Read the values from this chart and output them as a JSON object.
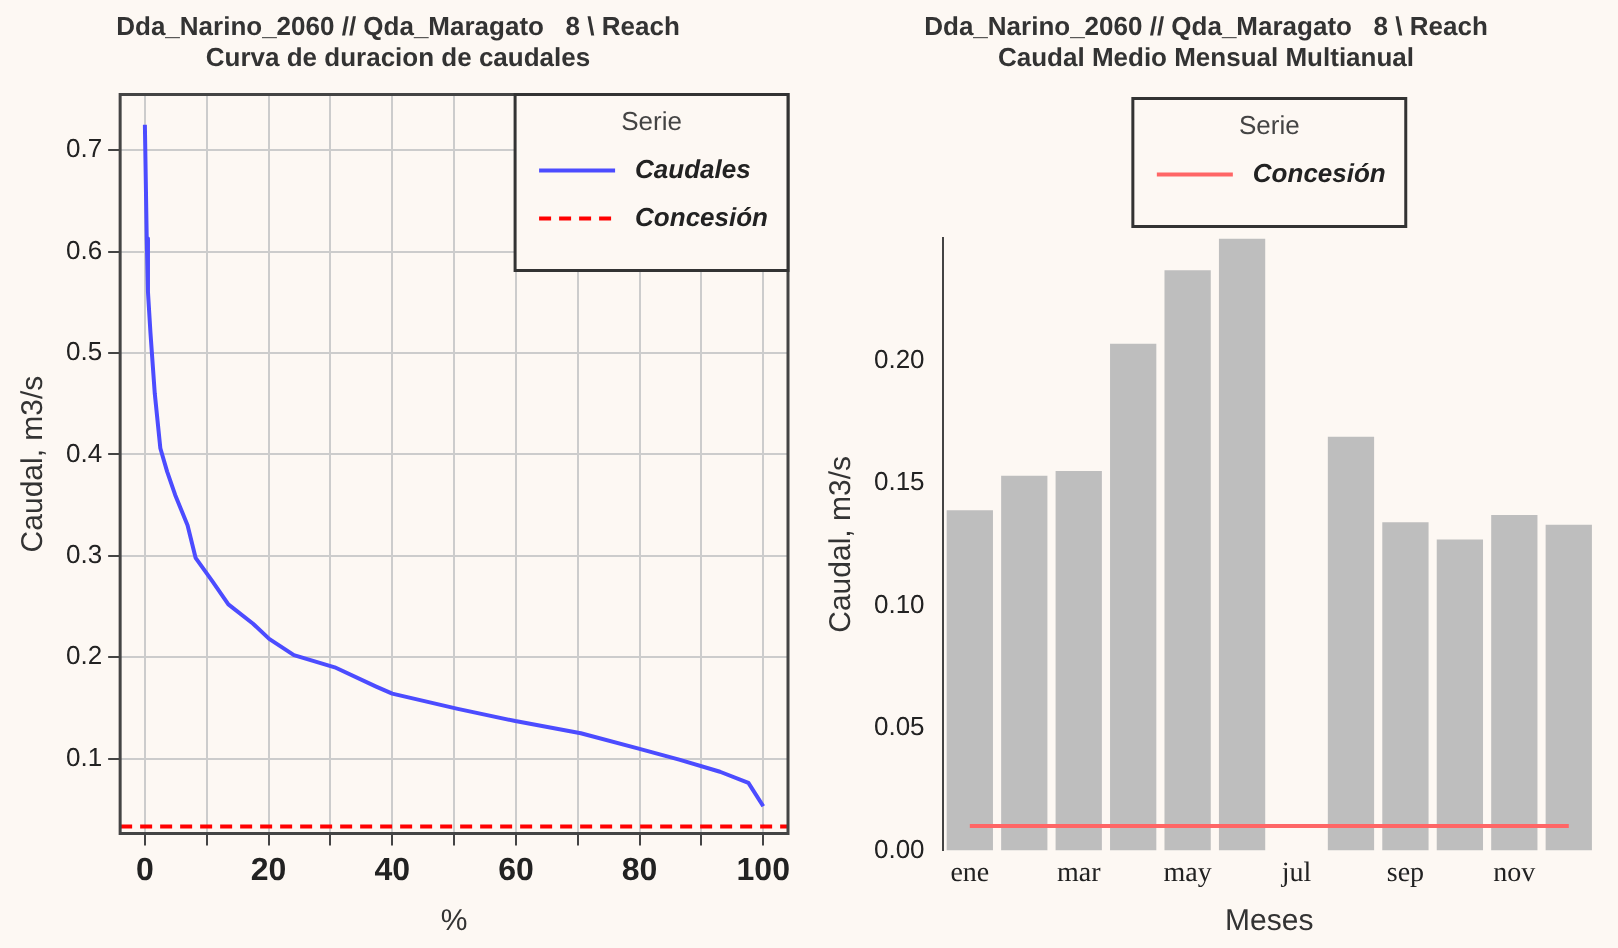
{
  "chart_data": [
    {
      "type": "line",
      "title": "Dda_Narino_2060 // Qda_Maragato   8 \\ Reach",
      "subtitle": "Curva de duracion de caudales",
      "xlabel": "%",
      "ylabel": "Caudal, m3/s",
      "legend_title": "Serie",
      "legend": "top right",
      "grid": true,
      "marker": "none",
      "xlim": [
        -4,
        104
      ],
      "xticks": [
        0,
        {
          "value": 10,
          "label": null
        },
        20,
        {
          "value": 30,
          "label": null
        },
        40,
        {
          "value": 50,
          "label": null
        },
        60,
        {
          "value": 70,
          "label": null
        },
        80,
        {
          "value": 90,
          "label": null
        },
        100
      ],
      "ylim": [
        0.026,
        0.755
      ],
      "yticks": [
        0.1,
        0.2,
        0.3,
        0.4,
        0.5,
        0.6,
        0.7
      ],
      "series": [
        {
          "name": "Caudales",
          "color": "#4c4cff",
          "line_style": "solid",
          "x": [
            0,
            0.3,
            0.5,
            0.9,
            1.6,
            2.5,
            3.6,
            4.9,
            6.9,
            8.2,
            10.9,
            13.5,
            17.5,
            20.1,
            24.1,
            30.7,
            37.4,
            40,
            50.6,
            59.9,
            70.5,
            79.7,
            86.4,
            93,
            97.6,
            100
          ],
          "values": [
            0.725,
            0.613,
            0.56,
            0.52,
            0.46,
            0.406,
            0.383,
            0.36,
            0.33,
            0.298,
            0.275,
            0.252,
            0.233,
            0.218,
            0.202,
            0.19,
            0.171,
            0.164,
            0.149,
            0.137,
            0.125,
            0.11,
            0.099,
            0.087,
            0.076,
            0.053
          ]
        },
        {
          "name": "Concesión",
          "color": "#ff0000",
          "line_style": "dashed",
          "x": [
            -4,
            104
          ],
          "values": [
            0.033,
            0.033
          ]
        }
      ]
    },
    {
      "type": "bar",
      "title": "Dda_Narino_2060 // Qda_Maragato   8 \\ Reach",
      "subtitle": "Caudal Medio Mensual Multianual",
      "xlabel": "Meses",
      "ylabel": "Caudal, m3/s",
      "legend_title": "Serie",
      "legend": "top",
      "grid": false,
      "categories": [
        "ene",
        null,
        "mar",
        null,
        "may",
        null,
        "jul",
        null,
        "sep",
        null,
        "nov",
        null
      ],
      "ylim": [
        0,
        0.25
      ],
      "yticks": [
        {
          "value": 0,
          "label": "0.00"
        },
        0.05,
        {
          "value": 0.1,
          "label": "0.10"
        },
        0.15,
        {
          "value": 0.2,
          "label": "0.20"
        }
      ],
      "series": [
        {
          "color": "#bebebe",
          "values": [
            0.139,
            0.153,
            0.155,
            0.207,
            0.237,
            0.25,
            null,
            0.169,
            0.134,
            0.127,
            0.137,
            0.133
          ]
        },
        {
          "type": "line",
          "name": "Concesión",
          "color": "#ff6666",
          "line_style": "solid",
          "values": [
            0.01,
            0.01,
            0.01,
            0.01,
            0.01,
            0.01,
            0.01,
            0.01,
            0.01,
            0.01,
            0.01,
            0.01
          ]
        }
      ]
    }
  ]
}
